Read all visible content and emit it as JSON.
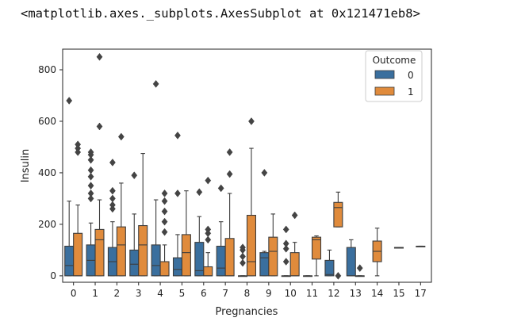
{
  "output_header": "<matplotlib.axes._subplots.AxesSubplot at 0x121471eb8>",
  "colors": {
    "outcome_0": "#3a6f9e",
    "outcome_1": "#e08b3c",
    "outlier": "#444444",
    "line": "#3d3d3d"
  },
  "chart_data": {
    "type": "boxplot",
    "xlabel": "Pregnancies",
    "ylabel": "Insulin",
    "categories": [
      "0",
      "1",
      "2",
      "3",
      "4",
      "5",
      "6",
      "7",
      "8",
      "9",
      "10",
      "11",
      "12",
      "13",
      "14",
      "15",
      "17"
    ],
    "ylim": [
      -25,
      880
    ],
    "yticks": [
      0,
      200,
      400,
      600,
      800
    ],
    "grid": false,
    "legend": {
      "title": "Outcome",
      "entries": [
        "0",
        "1"
      ],
      "position": "top-right"
    },
    "series": [
      {
        "name": "0",
        "boxes": [
          {
            "cat": "0",
            "q1": 0,
            "med": 40,
            "q3": 115,
            "wlo": 0,
            "whi": 290,
            "outliers": [
              680
            ]
          },
          {
            "cat": "1",
            "q1": 0,
            "med": 60,
            "q3": 120,
            "wlo": 0,
            "whi": 205,
            "outliers": [
              300,
              320,
              350,
              385,
              410,
              450,
              470,
              480
            ]
          },
          {
            "cat": "2",
            "q1": 0,
            "med": 55,
            "q3": 110,
            "wlo": 0,
            "whi": 210,
            "outliers": [
              260,
              275,
              300,
              330,
              440
            ]
          },
          {
            "cat": "3",
            "q1": 0,
            "med": 45,
            "q3": 100,
            "wlo": 0,
            "whi": 240,
            "outliers": [
              390
            ]
          },
          {
            "cat": "4",
            "q1": 0,
            "med": 40,
            "q3": 120,
            "wlo": 0,
            "whi": 295,
            "outliers": [
              745
            ]
          },
          {
            "cat": "5",
            "q1": 0,
            "med": 25,
            "q3": 70,
            "wlo": 0,
            "whi": 160,
            "outliers": [
              320,
              545
            ]
          },
          {
            "cat": "6",
            "q1": 0,
            "med": 20,
            "q3": 130,
            "wlo": 0,
            "whi": 230,
            "outliers": [
              325
            ]
          },
          {
            "cat": "7",
            "q1": 0,
            "med": 30,
            "q3": 115,
            "wlo": 0,
            "whi": 210,
            "outliers": [
              340
            ]
          },
          {
            "cat": "8",
            "q1": 0,
            "med": 0,
            "q3": 0,
            "wlo": 0,
            "whi": 0,
            "outliers": [
              50,
              75,
              100,
              110
            ]
          },
          {
            "cat": "9",
            "q1": 0,
            "med": 70,
            "q3": 90,
            "wlo": 0,
            "whi": 95,
            "outliers": [
              400
            ]
          },
          {
            "cat": "10",
            "q1": 0,
            "med": 0,
            "q3": 0,
            "wlo": 0,
            "whi": 0,
            "outliers": [
              55,
              105,
              125,
              180
            ]
          },
          {
            "cat": "11",
            "q1": 0,
            "med": 0,
            "q3": 0,
            "wlo": 0,
            "whi": 0,
            "outliers": []
          },
          {
            "cat": "12",
            "q1": 0,
            "med": 5,
            "q3": 60,
            "wlo": 0,
            "whi": 100,
            "outliers": []
          },
          {
            "cat": "13",
            "q1": 0,
            "med": 0,
            "q3": 110,
            "wlo": 0,
            "whi": 140,
            "outliers": []
          }
        ]
      },
      {
        "name": "1",
        "boxes": [
          {
            "cat": "0",
            "q1": 0,
            "med": 0,
            "q3": 165,
            "wlo": 0,
            "whi": 275,
            "outliers": [
              480,
              495,
              510
            ]
          },
          {
            "cat": "1",
            "q1": 0,
            "med": 140,
            "q3": 180,
            "wlo": 0,
            "whi": 295,
            "outliers": [
              580,
              850
            ]
          },
          {
            "cat": "2",
            "q1": 0,
            "med": 120,
            "q3": 190,
            "wlo": 0,
            "whi": 360,
            "outliers": [
              540
            ]
          },
          {
            "cat": "3",
            "q1": 0,
            "med": 120,
            "q3": 195,
            "wlo": 0,
            "whi": 475,
            "outliers": []
          },
          {
            "cat": "4",
            "q1": 0,
            "med": 0,
            "q3": 55,
            "wlo": 0,
            "whi": 120,
            "outliers": [
              170,
              210,
              250,
              290,
              320
            ]
          },
          {
            "cat": "5",
            "q1": 0,
            "med": 90,
            "q3": 160,
            "wlo": 0,
            "whi": 330,
            "outliers": []
          },
          {
            "cat": "6",
            "q1": 0,
            "med": 0,
            "q3": 35,
            "wlo": 0,
            "whi": 90,
            "outliers": [
              140,
              165,
              180,
              370
            ]
          },
          {
            "cat": "7",
            "q1": 0,
            "med": 0,
            "q3": 145,
            "wlo": 0,
            "whi": 320,
            "outliers": [
              395,
              480
            ]
          },
          {
            "cat": "8",
            "q1": 0,
            "med": 55,
            "q3": 235,
            "wlo": 0,
            "whi": 495,
            "outliers": [
              600
            ]
          },
          {
            "cat": "9",
            "q1": 0,
            "med": 95,
            "q3": 150,
            "wlo": 0,
            "whi": 240,
            "outliers": []
          },
          {
            "cat": "10",
            "q1": 0,
            "med": 0,
            "q3": 90,
            "wlo": 0,
            "whi": 130,
            "outliers": [
              235
            ]
          },
          {
            "cat": "11",
            "q1": 65,
            "med": 140,
            "q3": 150,
            "wlo": 0,
            "whi": 155,
            "outliers": []
          },
          {
            "cat": "12",
            "q1": 190,
            "med": 265,
            "q3": 285,
            "wlo": 190,
            "whi": 325,
            "outliers": [
              0
            ]
          },
          {
            "cat": "13",
            "q1": 0,
            "med": 0,
            "q3": 0,
            "wlo": 0,
            "whi": 0,
            "outliers": [
              30
            ]
          },
          {
            "cat": "14",
            "q1": 55,
            "med": 95,
            "q3": 135,
            "wlo": 0,
            "whi": 185,
            "outliers": []
          },
          {
            "cat": "15",
            "q1": 110,
            "med": 110,
            "q3": 110,
            "wlo": 110,
            "whi": 110,
            "outliers": []
          },
          {
            "cat": "17",
            "q1": 115,
            "med": 115,
            "q3": 115,
            "wlo": 115,
            "whi": 115,
            "outliers": []
          }
        ]
      }
    ]
  }
}
